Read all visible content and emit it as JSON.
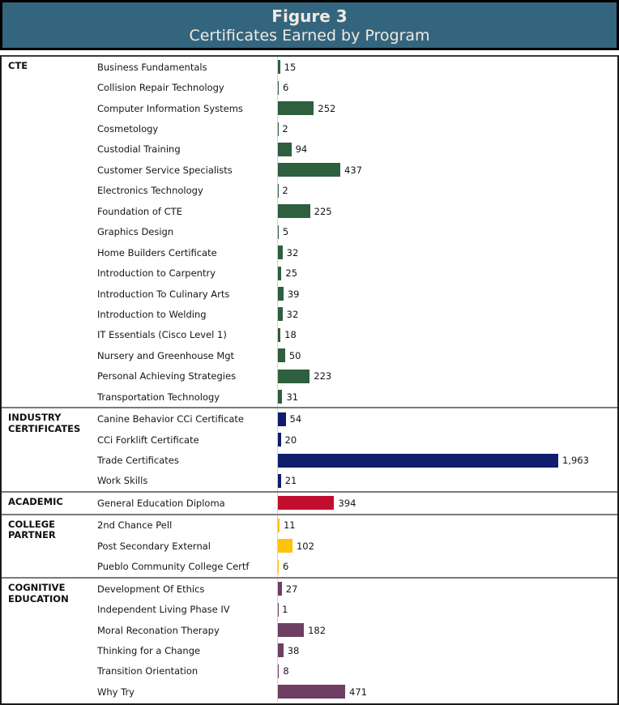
{
  "header": {
    "figure_label": "Figure 3",
    "title": "Certificates Earned by Program",
    "bg_color": "#34657E",
    "text_color": "#EFEAE1"
  },
  "chart_data": {
    "type": "bar",
    "orientation": "horizontal",
    "title": "Certificates Earned by Program",
    "xlabel": "",
    "ylabel": "",
    "legend": "none",
    "grid": false,
    "value_labels_shown": true,
    "max_value": 1963,
    "xlim": [
      0,
      2300
    ],
    "groups": [
      {
        "label": "CTE",
        "color": "#2E5F3E",
        "items": [
          {
            "name": "Business Fundamentals",
            "value": 15,
            "display": "15"
          },
          {
            "name": "Collision Repair Technology",
            "value": 6,
            "display": "6"
          },
          {
            "name": "Computer Information Systems",
            "value": 252,
            "display": "252"
          },
          {
            "name": "Cosmetology",
            "value": 2,
            "display": "2"
          },
          {
            "name": "Custodial Training",
            "value": 94,
            "display": "94"
          },
          {
            "name": "Customer Service Specialists",
            "value": 437,
            "display": "437"
          },
          {
            "name": "Electronics Technology",
            "value": 2,
            "display": "2"
          },
          {
            "name": "Foundation of CTE",
            "value": 225,
            "display": "225"
          },
          {
            "name": "Graphics Design",
            "value": 5,
            "display": "5"
          },
          {
            "name": "Home Builders Certificate",
            "value": 32,
            "display": "32"
          },
          {
            "name": "Introduction to Carpentry",
            "value": 25,
            "display": "25"
          },
          {
            "name": "Introduction To Culinary Arts",
            "value": 39,
            "display": "39"
          },
          {
            "name": "Introduction to Welding",
            "value": 32,
            "display": "32"
          },
          {
            "name": "IT Essentials (Cisco Level 1)",
            "value": 18,
            "display": "18"
          },
          {
            "name": "Nursery and Greenhouse Mgt",
            "value": 50,
            "display": "50"
          },
          {
            "name": "Personal Achieving Strategies",
            "value": 223,
            "display": "223"
          },
          {
            "name": "Transportation Technology",
            "value": 31,
            "display": "31"
          }
        ]
      },
      {
        "label": "INDUSTRY CERTIFICATES",
        "color": "#101D6D",
        "items": [
          {
            "name": "Canine Behavior CCi Certificate",
            "value": 54,
            "display": "54"
          },
          {
            "name": "CCi Forklift Certificate",
            "value": 20,
            "display": "20"
          },
          {
            "name": "Trade Certificates",
            "value": 1963,
            "display": "1,963"
          },
          {
            "name": "Work Skills",
            "value": 21,
            "display": "21"
          }
        ]
      },
      {
        "label": "ACADEMIC",
        "color": "#C20E2E",
        "items": [
          {
            "name": "General Education Diploma",
            "value": 394,
            "display": "394"
          }
        ]
      },
      {
        "label": "COLLEGE PARTNER",
        "color": "#FFC20A",
        "items": [
          {
            "name": "2nd Chance Pell",
            "value": 11,
            "display": "11"
          },
          {
            "name": "Post Secondary External",
            "value": 102,
            "display": "102"
          },
          {
            "name": "Pueblo Community College Certf",
            "value": 6,
            "display": "6"
          }
        ]
      },
      {
        "label": "COGNITIVE EDUCATION",
        "color": "#6E3F63",
        "items": [
          {
            "name": "Development Of Ethics",
            "value": 27,
            "display": "27"
          },
          {
            "name": "Independent Living Phase IV",
            "value": 1,
            "display": "1"
          },
          {
            "name": "Moral Reconation Therapy",
            "value": 182,
            "display": "182"
          },
          {
            "name": "Thinking for a Change",
            "value": 38,
            "display": "38"
          },
          {
            "name": "Transition Orientation",
            "value": 8,
            "display": "8"
          },
          {
            "name": "Why Try",
            "value": 471,
            "display": "471"
          }
        ]
      }
    ]
  }
}
